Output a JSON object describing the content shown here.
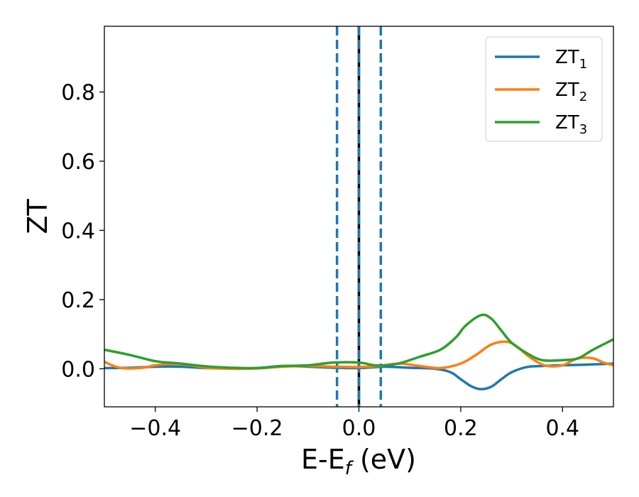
{
  "chart_data": {
    "type": "line",
    "title": "",
    "xlabel": {
      "base": "E-E",
      "sub": "f",
      "unit": " (eV)"
    },
    "ylabel": "ZT",
    "xlim": [
      -0.5,
      0.5
    ],
    "ylim": [
      -0.11,
      0.99
    ],
    "xticks": [
      -0.4,
      -0.2,
      0.0,
      0.2,
      0.4
    ],
    "xtick_labels": [
      "−0.4",
      "−0.2",
      "0.0",
      "0.2",
      "0.4"
    ],
    "yticks": [
      0.0,
      0.2,
      0.4,
      0.6,
      0.8
    ],
    "ytick_labels": [
      "0.0",
      "0.2",
      "0.4",
      "0.6",
      "0.8"
    ],
    "grid": false,
    "legend_position": "top-right",
    "vertical_lines": [
      {
        "x": 0.0,
        "color": "#000000",
        "style": "solid"
      },
      {
        "x": -0.043,
        "color": "#1f77b4",
        "style": "dashed"
      },
      {
        "x": 0.0,
        "color": "#1f77b4",
        "style": "dashed"
      },
      {
        "x": 0.043,
        "color": "#1f77b4",
        "style": "dashed"
      }
    ],
    "series": [
      {
        "name": "ZT",
        "sub": "1",
        "color": "#1f77b4",
        "x": [
          -0.5,
          -0.45,
          -0.4,
          -0.35,
          -0.3,
          -0.25,
          -0.2,
          -0.15,
          -0.1,
          -0.05,
          0.0,
          0.05,
          0.1,
          0.15,
          0.18,
          0.2,
          0.22,
          0.24,
          0.26,
          0.28,
          0.3,
          0.33,
          0.36,
          0.4,
          0.45,
          0.5
        ],
        "y": [
          0.002,
          0.003,
          0.006,
          0.006,
          0.002,
          0.001,
          0.002,
          0.008,
          0.006,
          0.003,
          0.002,
          0.006,
          0.003,
          0.0,
          -0.01,
          -0.03,
          -0.05,
          -0.059,
          -0.052,
          -0.03,
          -0.01,
          0.005,
          0.008,
          0.01,
          0.012,
          0.015
        ]
      },
      {
        "name": "ZT",
        "sub": "2",
        "color": "#ff7f0e",
        "x": [
          -0.5,
          -0.47,
          -0.43,
          -0.4,
          -0.37,
          -0.33,
          -0.3,
          -0.25,
          -0.2,
          -0.15,
          -0.1,
          -0.05,
          0.0,
          0.04,
          0.08,
          0.12,
          0.16,
          0.2,
          0.23,
          0.26,
          0.29,
          0.31,
          0.33,
          0.35,
          0.37,
          0.4,
          0.43,
          0.46,
          0.48,
          0.5
        ],
        "y": [
          0.02,
          0.003,
          0.002,
          0.01,
          0.014,
          0.01,
          0.003,
          0.0,
          0.001,
          0.006,
          0.008,
          0.006,
          0.005,
          0.008,
          0.015,
          0.008,
          0.002,
          0.015,
          0.04,
          0.07,
          0.078,
          0.065,
          0.04,
          0.02,
          0.008,
          0.01,
          0.03,
          0.03,
          0.018,
          0.01
        ]
      },
      {
        "name": "ZT",
        "sub": "3",
        "color": "#2ca02c",
        "x": [
          -0.5,
          -0.45,
          -0.4,
          -0.35,
          -0.3,
          -0.25,
          -0.2,
          -0.15,
          -0.1,
          -0.05,
          0.0,
          0.03,
          0.05,
          0.08,
          0.12,
          0.16,
          0.19,
          0.21,
          0.24,
          0.26,
          0.28,
          0.3,
          0.33,
          0.36,
          0.4,
          0.43,
          0.46,
          0.5
        ],
        "y": [
          0.055,
          0.04,
          0.022,
          0.015,
          0.007,
          0.003,
          0.002,
          0.008,
          0.01,
          0.018,
          0.018,
          0.01,
          0.01,
          0.016,
          0.035,
          0.055,
          0.09,
          0.125,
          0.155,
          0.145,
          0.11,
          0.075,
          0.045,
          0.025,
          0.025,
          0.03,
          0.055,
          0.085
        ]
      }
    ]
  }
}
